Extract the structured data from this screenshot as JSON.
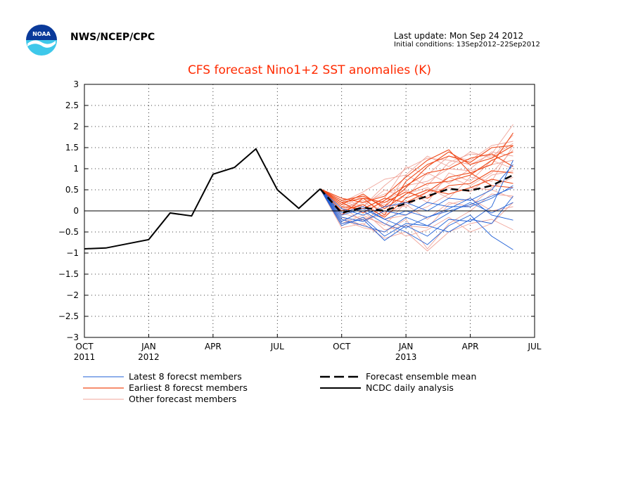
{
  "header": {
    "agency": "NWS/NCEP/CPC",
    "last_update": "Last update: Mon Sep 24 2012",
    "initial_conditions": "Initial conditions: 13Sep2012–22Sep2012",
    "logo_text": "NOAA"
  },
  "colors": {
    "title": "#ff2a00",
    "latest": "#1f5fd6",
    "earliest": "#f04a1a",
    "other": "#f0a59a",
    "analysis": "#000000",
    "mean": "#000000"
  },
  "chart_data": {
    "type": "line",
    "title": "CFS forecast Nino1+2 SST anomalies (K)",
    "ylim": [
      -3,
      3
    ],
    "yticks": [
      3,
      2.5,
      2,
      1.5,
      1,
      0.5,
      0,
      -0.5,
      -1,
      -1.5,
      -2,
      -2.5,
      -3
    ],
    "ytick_labels": [
      "3",
      "2.5",
      "2",
      "1.5",
      "1",
      "0.5",
      "0",
      "−0.5",
      "−1",
      "−1.5",
      "−2",
      "−2.5",
      "−3"
    ],
    "xlim": [
      "2011-10",
      "2013-07"
    ],
    "xticks": [
      {
        "month": "2011-10",
        "label": "OCT",
        "year": "2011"
      },
      {
        "month": "2012-01",
        "label": "JAN",
        "year": "2012"
      },
      {
        "month": "2012-04",
        "label": "APR",
        "year": ""
      },
      {
        "month": "2012-07",
        "label": "JUL",
        "year": ""
      },
      {
        "month": "2012-10",
        "label": "OCT",
        "year": ""
      },
      {
        "month": "2013-01",
        "label": "JAN",
        "year": "2013"
      },
      {
        "month": "2013-04",
        "label": "APR",
        "year": ""
      },
      {
        "month": "2013-07",
        "label": "JUL",
        "year": ""
      }
    ],
    "grid": true,
    "analysis": {
      "name": "NCDC daily analysis",
      "x": [
        "2011-10",
        "2011-11",
        "2011-12",
        "2012-01",
        "2012-02",
        "2012-03",
        "2012-04",
        "2012-05",
        "2012-06",
        "2012-07",
        "2012-08",
        "2012-09"
      ],
      "y": [
        -0.9,
        -0.88,
        -0.78,
        -0.68,
        -0.05,
        -0.12,
        0.87,
        1.03,
        1.47,
        0.5,
        0.06,
        0.52
      ]
    },
    "forecast_months": [
      "2012-09",
      "2012-10",
      "2012-11",
      "2012-12",
      "2013-01",
      "2013-02",
      "2013-03",
      "2013-04",
      "2013-05",
      "2013-06"
    ],
    "ensemble_mean": {
      "name": "Forecast ensemble mean",
      "y": [
        0.52,
        -0.05,
        0.08,
        0.0,
        0.18,
        0.35,
        0.52,
        0.48,
        0.6,
        0.85
      ]
    },
    "latest_members": {
      "name": "Latest 8 forecst members",
      "series": [
        [
          0.52,
          -0.3,
          -0.2,
          -0.7,
          -0.35,
          -0.6,
          -0.2,
          -0.25,
          0.1,
          1.2
        ],
        [
          0.52,
          -0.25,
          0.0,
          -0.3,
          -0.5,
          -0.8,
          -0.35,
          -0.1,
          -0.6,
          -0.92
        ],
        [
          0.52,
          -0.1,
          0.05,
          -0.2,
          0.0,
          -0.15,
          0.05,
          0.3,
          -0.1,
          -0.22
        ],
        [
          0.52,
          0.05,
          -0.1,
          0.1,
          0.2,
          0.0,
          0.3,
          0.25,
          0.5,
          1.1
        ],
        [
          0.52,
          -0.2,
          -0.35,
          -0.5,
          -0.15,
          -0.35,
          -0.05,
          0.2,
          -0.05,
          0.2
        ],
        [
          0.52,
          -0.05,
          0.1,
          -0.2,
          -0.4,
          -0.15,
          0.0,
          0.15,
          0.35,
          0.55
        ],
        [
          0.52,
          -0.35,
          -0.15,
          -0.6,
          -0.3,
          -0.35,
          -0.5,
          -0.2,
          -0.3,
          0.35
        ],
        [
          0.52,
          -0.15,
          -0.25,
          0.0,
          -0.1,
          0.2,
          0.1,
          0.1,
          0.3,
          0.6
        ]
      ]
    },
    "earliest_members": {
      "name": "Earliest 8 forecst members",
      "series": [
        [
          0.52,
          0.25,
          0.35,
          0.1,
          0.55,
          1.05,
          1.4,
          1.1,
          1.25,
          1.55
        ],
        [
          0.52,
          0.3,
          0.2,
          0.35,
          0.8,
          1.2,
          1.45,
          0.9,
          1.1,
          1.85
        ],
        [
          0.52,
          0.15,
          0.4,
          0.05,
          0.4,
          0.65,
          0.7,
          0.85,
          1.2,
          1.4
        ],
        [
          0.52,
          0.0,
          0.15,
          -0.15,
          0.3,
          0.5,
          0.4,
          0.55,
          0.75,
          0.65
        ],
        [
          0.52,
          0.2,
          -0.05,
          0.25,
          0.6,
          0.9,
          1.0,
          1.25,
          1.35,
          1.05
        ],
        [
          0.52,
          -0.1,
          0.3,
          0.2,
          0.45,
          0.3,
          0.6,
          0.65,
          0.95,
          0.9
        ],
        [
          0.52,
          0.1,
          0.05,
          0.3,
          0.2,
          0.45,
          0.8,
          0.9,
          0.6,
          0.55
        ],
        [
          0.52,
          0.2,
          0.3,
          -0.1,
          0.7,
          1.1,
          1.3,
          1.15,
          1.5,
          1.55
        ]
      ]
    },
    "other_members": {
      "name": "Other forecast members",
      "series": [
        [
          0.52,
          0.3,
          0.1,
          0.6,
          1.0,
          1.25,
          1.2,
          1.1,
          1.35,
          2.05
        ],
        [
          0.52,
          -0.2,
          -0.4,
          -0.5,
          -0.2,
          -0.9,
          -0.3,
          0.0,
          0.4,
          0.35
        ],
        [
          0.52,
          0.1,
          -0.25,
          0.1,
          0.85,
          0.6,
          1.15,
          1.35,
          1.3,
          1.6
        ],
        [
          0.52,
          -0.3,
          -0.1,
          -0.35,
          0.2,
          0.35,
          0.8,
          0.6,
          0.9,
          1.45
        ],
        [
          0.52,
          0.05,
          0.25,
          -0.2,
          -0.1,
          0.1,
          0.4,
          0.55,
          0.5,
          0.3
        ],
        [
          0.52,
          -0.1,
          0.2,
          0.4,
          0.6,
          0.7,
          1.0,
          0.95,
          1.1,
          1.2
        ],
        [
          0.52,
          -0.4,
          -0.3,
          -0.65,
          -0.5,
          -0.95,
          -0.5,
          -0.3,
          -0.2,
          -0.45
        ],
        [
          0.52,
          0.2,
          0.45,
          0.75,
          0.85,
          1.3,
          1.05,
          1.4,
          1.25,
          1.8
        ],
        [
          0.52,
          -0.15,
          -0.35,
          0.25,
          0.5,
          0.2,
          0.9,
          0.7,
          1.2,
          1.0
        ],
        [
          0.52,
          0.0,
          0.3,
          -0.05,
          0.4,
          0.55,
          0.3,
          0.8,
          0.7,
          1.55
        ],
        [
          0.52,
          -0.25,
          0.0,
          -0.45,
          -0.35,
          -0.4,
          0.15,
          0.3,
          0.0,
          0.1
        ],
        [
          0.52,
          0.15,
          0.1,
          0.5,
          0.3,
          0.9,
          0.65,
          1.0,
          1.4,
          1.3
        ],
        [
          0.52,
          -0.05,
          -0.2,
          -0.1,
          0.15,
          -0.2,
          0.2,
          0.1,
          0.55,
          0.8
        ],
        [
          0.52,
          0.25,
          0.05,
          0.3,
          1.05,
          0.85,
          1.3,
          1.2,
          1.55,
          1.65
        ],
        [
          0.52,
          -0.35,
          -0.15,
          -0.3,
          -0.6,
          -0.45,
          -0.15,
          -0.5,
          -0.3,
          0.2
        ],
        [
          0.52,
          0.1,
          0.35,
          0.15,
          0.1,
          0.45,
          0.55,
          0.45,
          0.85,
          0.95
        ]
      ]
    },
    "legend": {
      "placement": "bottom",
      "entries": [
        {
          "label": "Latest 8 forecst members",
          "style": "latest"
        },
        {
          "label": "Earliest 8 forecst members",
          "style": "earliest"
        },
        {
          "label": "Other forecast members",
          "style": "other"
        },
        {
          "label": "Forecast ensemble mean",
          "style": "mean"
        },
        {
          "label": "NCDC daily analysis",
          "style": "analysis"
        }
      ]
    }
  }
}
